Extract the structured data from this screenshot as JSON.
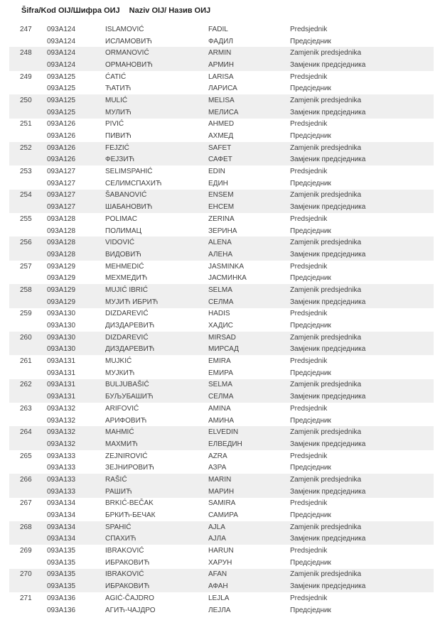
{
  "header": {
    "left": "Šifra/Kod OIJ/Шифра ОИЈ",
    "right": "Naziv OIJ/ Назив ОИЈ"
  },
  "colors": {
    "stripe": "#efefef",
    "body_text": "#404040",
    "header_text": "#1f1f1f",
    "background": "#ffffff"
  },
  "roles": {
    "president_latin": "Predsjednik",
    "president_cyrillic": "Предсједник",
    "deputy_latin": "Zamjenik predsjednika",
    "deputy_cyrillic": "Замјеник предсједника"
  },
  "table": {
    "entries": [
      {
        "num": "247",
        "code": "093A124",
        "surname_latin": "ISLAMOVIĆ",
        "surname_cyrillic": "ИСЛАМОВИЋ",
        "first_name_latin": "FADIL",
        "first_name_cyrillic": "ФАДИЛ",
        "role_latin": "Predsjednik",
        "role_cyrillic": "Предсједник",
        "shaded": false
      },
      {
        "num": "248",
        "code": "093A124",
        "surname_latin": "ORMANOVIĆ",
        "surname_cyrillic": "ОРМАНОВИЋ",
        "first_name_latin": "ARMIN",
        "first_name_cyrillic": "АРМИН",
        "role_latin": "Zamjenik predsjednika",
        "role_cyrillic": "Замјеник предсједника",
        "shaded": true
      },
      {
        "num": "249",
        "code": "093A125",
        "surname_latin": "ĆATIĆ",
        "surname_cyrillic": "ЋАТИЋ",
        "first_name_latin": "LARISA",
        "first_name_cyrillic": "ЛАРИСА",
        "role_latin": "Predsjednik",
        "role_cyrillic": "Предсједник",
        "shaded": false
      },
      {
        "num": "250",
        "code": "093A125",
        "surname_latin": "MULIĆ",
        "surname_cyrillic": "МУЛИЋ",
        "first_name_latin": "MELISA",
        "first_name_cyrillic": "МЕЛИСА",
        "role_latin": "Zamjenik predsjednika",
        "role_cyrillic": "Замјеник предсједника",
        "shaded": true
      },
      {
        "num": "251",
        "code": "093A126",
        "surname_latin": "PIVIĆ",
        "surname_cyrillic": "ПИВИЋ",
        "first_name_latin": "AHMED",
        "first_name_cyrillic": "АХМЕД",
        "role_latin": "Predsjednik",
        "role_cyrillic": "Предсједник",
        "shaded": false
      },
      {
        "num": "252",
        "code": "093A126",
        "surname_latin": "FEJZIĆ",
        "surname_cyrillic": "ФЕЈЗИЋ",
        "first_name_latin": "SAFET",
        "first_name_cyrillic": "САФЕТ",
        "role_latin": "Zamjenik predsjednika",
        "role_cyrillic": "Замјеник предсједника",
        "shaded": true
      },
      {
        "num": "253",
        "code": "093A127",
        "surname_latin": "SELIMSPAHIĆ",
        "surname_cyrillic": "СЕЛИМСПАХИЋ",
        "first_name_latin": "EDIN",
        "first_name_cyrillic": "ЕДИН",
        "role_latin": "Predsjednik",
        "role_cyrillic": "Предсједник",
        "shaded": false
      },
      {
        "num": "254",
        "code": "093A127",
        "surname_latin": "ŠABANOVIĆ",
        "surname_cyrillic": "ШАБАНОВИЋ",
        "first_name_latin": "ENSEM",
        "first_name_cyrillic": "ЕНСЕМ",
        "role_latin": "Zamjenik predsjednika",
        "role_cyrillic": "Замјеник предсједника",
        "shaded": true
      },
      {
        "num": "255",
        "code": "093A128",
        "surname_latin": "POLIMAC",
        "surname_cyrillic": "ПОЛИМАЦ",
        "first_name_latin": "ZERINA",
        "first_name_cyrillic": "ЗЕРИНА",
        "role_latin": "Predsjednik",
        "role_cyrillic": "Предсједник",
        "shaded": false
      },
      {
        "num": "256",
        "code": "093A128",
        "surname_latin": "VIDOVIĆ",
        "surname_cyrillic": "ВИДОВИЋ",
        "first_name_latin": "ALENA",
        "first_name_cyrillic": "АЛЕНА",
        "role_latin": "Zamjenik predsjednika",
        "role_cyrillic": "Замјеник предсједника",
        "shaded": true
      },
      {
        "num": "257",
        "code": "093A129",
        "surname_latin": "MEHMEDIĆ",
        "surname_cyrillic": "МЕХМЕДИЋ",
        "first_name_latin": "JASMINKA",
        "first_name_cyrillic": "ЈАСМИНКА",
        "role_latin": "Predsjednik",
        "role_cyrillic": "Предсједник",
        "shaded": false
      },
      {
        "num": "258",
        "code": "093A129",
        "surname_latin": "MUJIĆ IBRIĆ",
        "surname_cyrillic": "МУЈИЋ ИБРИЋ",
        "first_name_latin": "SELMA",
        "first_name_cyrillic": "СЕЛМА",
        "role_latin": "Zamjenik predsjednika",
        "role_cyrillic": "Замјеник предсједника",
        "shaded": true
      },
      {
        "num": "259",
        "code": "093A130",
        "surname_latin": "DIZDAREVIĆ",
        "surname_cyrillic": "ДИЗДАРЕВИЋ",
        "first_name_latin": "HADIS",
        "first_name_cyrillic": "ХАДИС",
        "role_latin": "Predsjednik",
        "role_cyrillic": "Предсједник",
        "shaded": false
      },
      {
        "num": "260",
        "code": "093A130",
        "surname_latin": "DIZDAREVIĆ",
        "surname_cyrillic": "ДИЗДАРЕВИЋ",
        "first_name_latin": "MIRSAD",
        "first_name_cyrillic": "МИРСАД",
        "role_latin": "Zamjenik predsjednika",
        "role_cyrillic": "Замјеник предсједника",
        "shaded": true
      },
      {
        "num": "261",
        "code": "093A131",
        "surname_latin": "MUJKIĆ",
        "surname_cyrillic": "МУЈКИЋ",
        "first_name_latin": "EMIRA",
        "first_name_cyrillic": "ЕМИРА",
        "role_latin": "Predsjednik",
        "role_cyrillic": "Предсједник",
        "shaded": false
      },
      {
        "num": "262",
        "code": "093A131",
        "surname_latin": "BULJUBAŠIĆ",
        "surname_cyrillic": "БУЉУБАШИЋ",
        "first_name_latin": "SELMA",
        "first_name_cyrillic": "СЕЛМА",
        "role_latin": "Zamjenik predsjednika",
        "role_cyrillic": "Замјеник предсједника",
        "shaded": true
      },
      {
        "num": "263",
        "code": "093A132",
        "surname_latin": "ARIFOVIĆ",
        "surname_cyrillic": "АРИФОВИЋ",
        "first_name_latin": "AMINA",
        "first_name_cyrillic": "АМИНА",
        "role_latin": "Predsjednik",
        "role_cyrillic": "Предсједник",
        "shaded": false
      },
      {
        "num": "264",
        "code": "093A132",
        "surname_latin": "MAHMIĆ",
        "surname_cyrillic": "МАХМИЋ",
        "first_name_latin": "ELVEDIN",
        "first_name_cyrillic": "ЕЛВЕДИН",
        "role_latin": "Zamjenik predsjednika",
        "role_cyrillic": "Замјеник предсједника",
        "shaded": true
      },
      {
        "num": "265",
        "code": "093A133",
        "surname_latin": "ZEJNIROVIĆ",
        "surname_cyrillic": "ЗЕЈНИРОВИЋ",
        "first_name_latin": "AZRA",
        "first_name_cyrillic": "АЗРА",
        "role_latin": "Predsjednik",
        "role_cyrillic": "Предсједник",
        "shaded": false
      },
      {
        "num": "266",
        "code": "093A133",
        "surname_latin": "RAŠIĆ",
        "surname_cyrillic": "РАШИЋ",
        "first_name_latin": "MARIN",
        "first_name_cyrillic": "МАРИН",
        "role_latin": "Zamjenik predsjednika",
        "role_cyrillic": "Замјеник предсједника",
        "shaded": true
      },
      {
        "num": "267",
        "code": "093A134",
        "surname_latin": "BRKIĆ-BEČAK",
        "surname_cyrillic": "БРКИЋ-БЕЧАК",
        "first_name_latin": "SAMIRA",
        "first_name_cyrillic": "САМИРА",
        "role_latin": "Predsjednik",
        "role_cyrillic": "Предсједник",
        "shaded": false
      },
      {
        "num": "268",
        "code": "093A134",
        "surname_latin": "SPAHIĆ",
        "surname_cyrillic": "СПАХИЋ",
        "first_name_latin": "AJLA",
        "first_name_cyrillic": "АЈЛА",
        "role_latin": "Zamjenik predsjednika",
        "role_cyrillic": "Замјеник предсједника",
        "shaded": true
      },
      {
        "num": "269",
        "code": "093A135",
        "surname_latin": "IBRAKOVIĆ",
        "surname_cyrillic": "ИБРАКОВИЋ",
        "first_name_latin": "HARUN",
        "first_name_cyrillic": "ХАРУН",
        "role_latin": "Predsjednik",
        "role_cyrillic": "Предсједник",
        "shaded": false
      },
      {
        "num": "270",
        "code": "093A135",
        "surname_latin": "IBRAKOVIĆ",
        "surname_cyrillic": "ИБРАКОВИЋ",
        "first_name_latin": "AFAN",
        "first_name_cyrillic": "АФАН",
        "role_latin": "Zamjenik predsjednika",
        "role_cyrillic": "Замјеник предсједника",
        "shaded": true
      },
      {
        "num": "271",
        "code": "093A136",
        "surname_latin": "AGIĆ-ČAJDRO",
        "surname_cyrillic": "АГИЋ-ЧАЈДРО",
        "first_name_latin": "LEJLA",
        "first_name_cyrillic": "ЛЕЈЛА",
        "role_latin": "Predsjednik",
        "role_cyrillic": "Предсједник",
        "shaded": false
      }
    ]
  }
}
